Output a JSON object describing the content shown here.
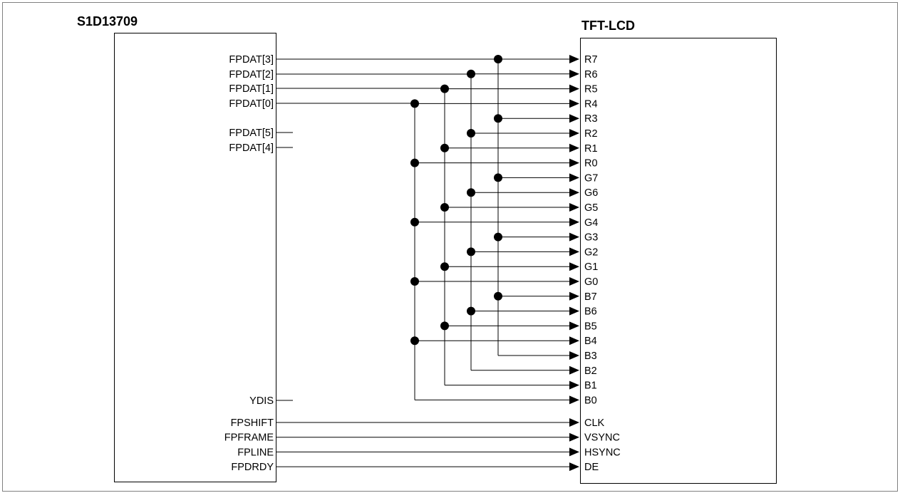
{
  "chips": {
    "left_title": "S1D13709",
    "right_title": "TFT-LCD"
  },
  "left_data_pins": [
    "FPDAT[3]",
    "FPDAT[2]",
    "FPDAT[1]",
    "FPDAT[0]"
  ],
  "left_nc_pins": [
    "FPDAT[5]",
    "FPDAT[4]",
    "YDIS"
  ],
  "left_ctrl_pins": [
    "FPSHIFT",
    "FPFRAME",
    "FPLINE",
    "FPDRDY"
  ],
  "right_data_pins": [
    "R7",
    "R6",
    "R5",
    "R4",
    "R3",
    "R2",
    "R1",
    "R0",
    "G7",
    "G6",
    "G5",
    "G4",
    "G3",
    "G2",
    "G1",
    "G0",
    "B7",
    "B6",
    "B5",
    "B4",
    "B3",
    "B2",
    "B1",
    "B0"
  ],
  "right_ctrl_pins": [
    "CLK",
    "VSYNC",
    "HSYNC",
    "DE"
  ],
  "connections": {
    "FPDAT[3]": [
      "R7",
      "R3",
      "G7",
      "G3",
      "B7",
      "B3"
    ],
    "FPDAT[2]": [
      "R6",
      "R2",
      "G6",
      "G2",
      "B6",
      "B2"
    ],
    "FPDAT[1]": [
      "R5",
      "R1",
      "G5",
      "G1",
      "B5",
      "B1"
    ],
    "FPDAT[0]": [
      "R4",
      "R0",
      "G4",
      "G0",
      "B4",
      "B0"
    ],
    "FPSHIFT": [
      "CLK"
    ],
    "FPFRAME": [
      "VSYNC"
    ],
    "FPLINE": [
      "HSYNC"
    ],
    "FPDRDY": [
      "DE"
    ]
  }
}
